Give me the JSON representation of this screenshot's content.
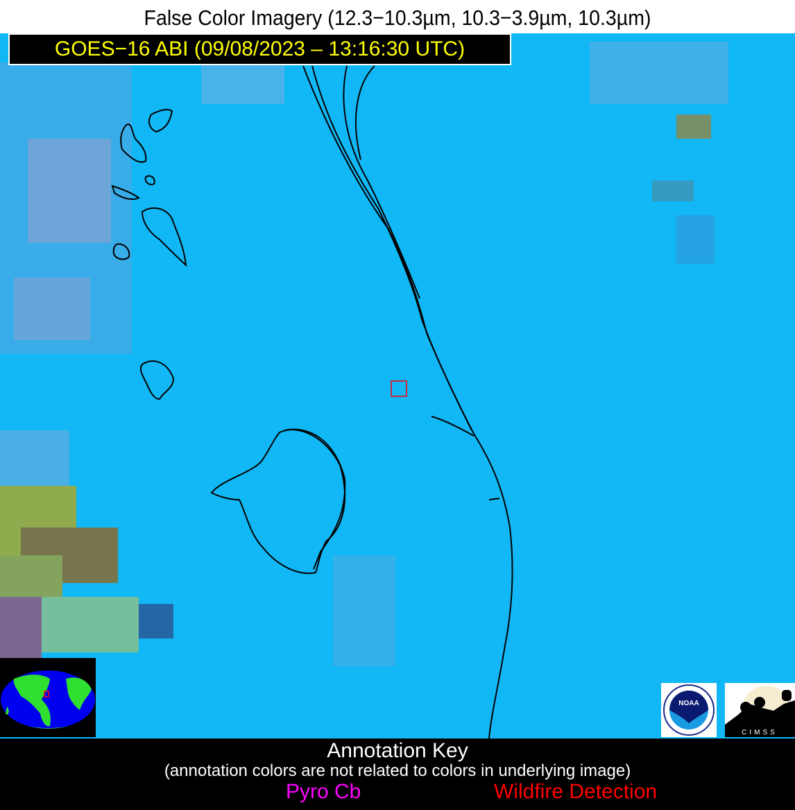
{
  "title": "False Color Imagery (12.3−10.3µm, 10.3−3.9µm, 10.3µm)",
  "satellite_label": "GOES−16 ABI (09/08/2023 – 13:16:30 UTC)",
  "annotation_key": {
    "title": "Annotation Key",
    "subtitle": "(annotation colors are not related to colors in underlying image)",
    "items": [
      {
        "label": "Pyro Cb",
        "color": "#ff00ff"
      },
      {
        "label": "Wildfire Detection",
        "color": "#ff0000"
      }
    ]
  },
  "logos": {
    "noaa": "NOAA",
    "cimss": "CIMSS"
  },
  "colors": {
    "background": "#12b8f6",
    "coastline": "#000000",
    "marker": "#ff0000",
    "header_text": "#ffff00"
  }
}
